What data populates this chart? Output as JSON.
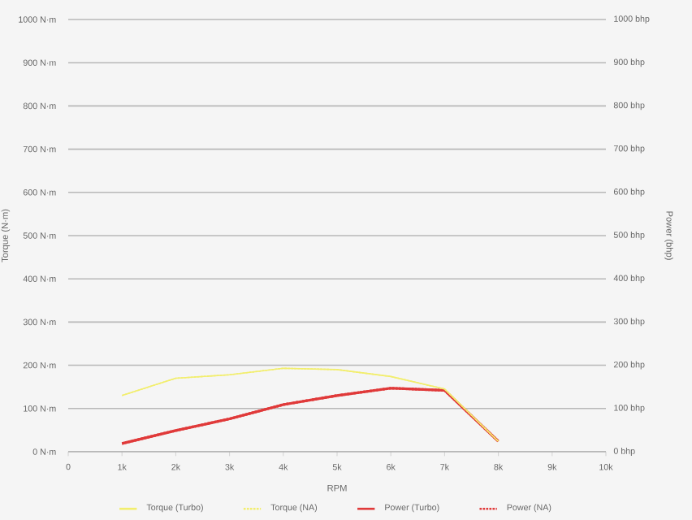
{
  "chart_data": {
    "type": "line",
    "xlabel": "RPM",
    "ylabel": "Torque (N·m)",
    "y2label": "Power (bhp)",
    "x": [
      1000,
      2000,
      3000,
      4000,
      5000,
      6000,
      7000,
      8000
    ],
    "xlim": [
      0,
      10000
    ],
    "xticks": [
      {
        "value": 0,
        "label": "0"
      },
      {
        "value": 1000,
        "label": "1k"
      },
      {
        "value": 2000,
        "label": "2k"
      },
      {
        "value": 3000,
        "label": "3k"
      },
      {
        "value": 4000,
        "label": "4k"
      },
      {
        "value": 5000,
        "label": "5k"
      },
      {
        "value": 6000,
        "label": "6k"
      },
      {
        "value": 7000,
        "label": "7k"
      },
      {
        "value": 8000,
        "label": "8k"
      },
      {
        "value": 9000,
        "label": "9k"
      },
      {
        "value": 10000,
        "label": "10k"
      }
    ],
    "ylim": [
      0,
      1000
    ],
    "yticks": [
      {
        "value": 0,
        "label": "0 N·m"
      },
      {
        "value": 100,
        "label": "100 N·m"
      },
      {
        "value": 200,
        "label": "200 N·m"
      },
      {
        "value": 300,
        "label": "300 N·m"
      },
      {
        "value": 400,
        "label": "400 N·m"
      },
      {
        "value": 500,
        "label": "500 N·m"
      },
      {
        "value": 600,
        "label": "600 N·m"
      },
      {
        "value": 700,
        "label": "700 N·m"
      },
      {
        "value": 800,
        "label": "800 N·m"
      },
      {
        "value": 900,
        "label": "900 N·m"
      },
      {
        "value": 1000,
        "label": "1000 N·m"
      }
    ],
    "y2lim": [
      0,
      1000
    ],
    "y2ticks": [
      {
        "value": 0,
        "label": "0 bhp"
      },
      {
        "value": 100,
        "label": "100 bhp"
      },
      {
        "value": 200,
        "label": "200 bhp"
      },
      {
        "value": 300,
        "label": "300 bhp"
      },
      {
        "value": 400,
        "label": "400 bhp"
      },
      {
        "value": 500,
        "label": "500 bhp"
      },
      {
        "value": 600,
        "label": "600 bhp"
      },
      {
        "value": 700,
        "label": "700 bhp"
      },
      {
        "value": 800,
        "label": "800 bhp"
      },
      {
        "value": 900,
        "label": "900 bhp"
      },
      {
        "value": 1000,
        "label": "1000 bhp"
      }
    ],
    "grid": "y",
    "legend": "bottom",
    "marker": "none",
    "series": [
      {
        "name": "Torque (Turbo)",
        "color": "#f2ee6e",
        "line_style": "solid",
        "values": [
          130,
          170,
          178,
          193,
          190,
          174,
          145,
          24
        ]
      },
      {
        "name": "Torque (NA)",
        "color": "#f2ee6e",
        "line_style": "dashed",
        "values": [
          130,
          170,
          178,
          193,
          190,
          174,
          145,
          24
        ]
      },
      {
        "name": "Power (Turbo)",
        "color": "#e03a3a",
        "line_style": "solid",
        "axis": "y2",
        "values": [
          19,
          49,
          76,
          109,
          130,
          147,
          142,
          24
        ]
      },
      {
        "name": "Power (NA)",
        "color": "#e03a3a",
        "line_style": "dashed",
        "axis": "y2",
        "values": [
          19,
          49,
          76,
          109,
          130,
          147,
          142,
          24
        ]
      }
    ]
  }
}
